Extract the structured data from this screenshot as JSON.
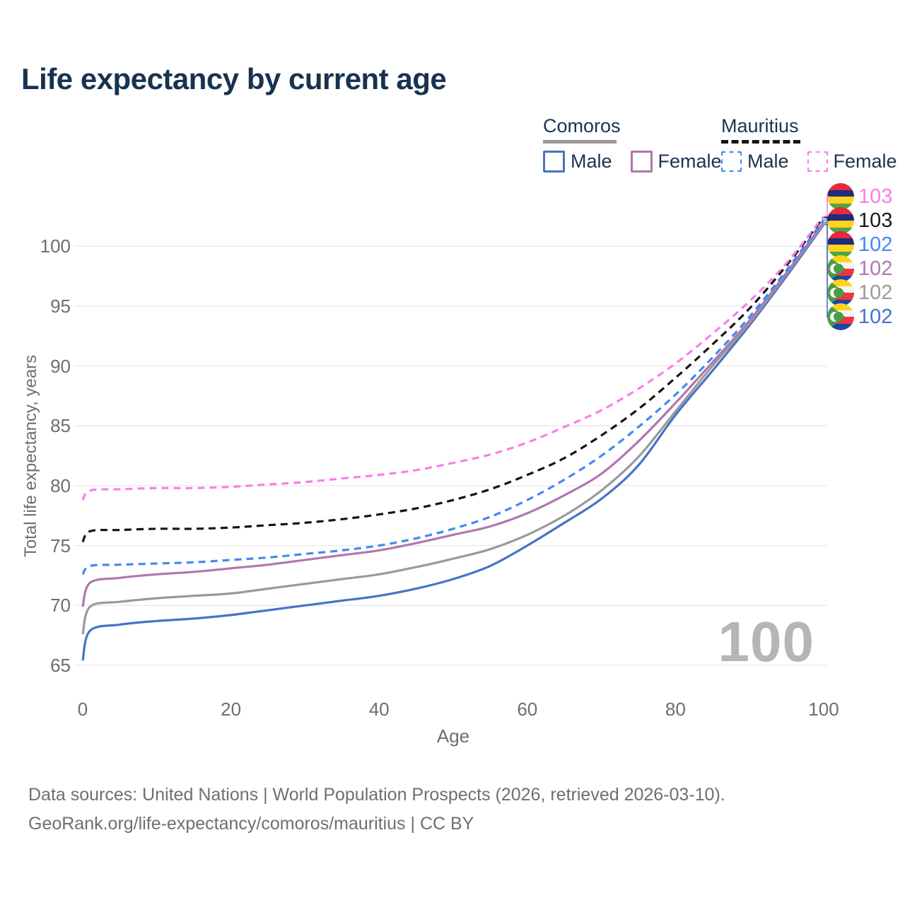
{
  "title": "Life expectancy by current age",
  "watermark": "100",
  "legend": {
    "groups": [
      {
        "name": "Comoros",
        "line_color": "#9a9a9a",
        "dashed": false,
        "items": [
          {
            "label": "Male",
            "color": "#4673c5"
          },
          {
            "label": "Female",
            "color": "#b176af"
          }
        ]
      },
      {
        "name": "Mauritius",
        "line_color": "#141414",
        "dashed": true,
        "items": [
          {
            "label": "Male",
            "color": "#4189f2"
          },
          {
            "label": "Female",
            "color": "#fc7de8"
          }
        ]
      }
    ]
  },
  "end_labels": [
    {
      "value": "103",
      "color": "#fc7de8",
      "flag": "mauritius"
    },
    {
      "value": "103",
      "color": "#1a1a1a",
      "flag": "mauritius"
    },
    {
      "value": "102",
      "color": "#4189f2",
      "flag": "mauritius"
    },
    {
      "value": "102",
      "color": "#b176af",
      "flag": "comoros"
    },
    {
      "value": "102",
      "color": "#9a9a9a",
      "flag": "comoros"
    },
    {
      "value": "102",
      "color": "#4673c5",
      "flag": "comoros"
    }
  ],
  "footer": {
    "line1": "Data sources: United Nations | World Population Prospects (2026, retrieved 2026-03-10).",
    "line2": "GeoRank.org/life-expectancy/comoros/mauritius | CC BY"
  },
  "chart_data": {
    "type": "line",
    "title": "Life expectancy by current age",
    "xlabel": "Age",
    "ylabel": "Total life expectancy, years",
    "xlim": [
      0,
      100
    ],
    "ylim": [
      63.5,
      104
    ],
    "xticks": [
      0,
      20,
      40,
      60,
      80,
      100
    ],
    "yticks": [
      65,
      70,
      75,
      80,
      85,
      90,
      95,
      100
    ],
    "grid": "horizontal",
    "legend_position": "top-right",
    "x": [
      0,
      1,
      5,
      10,
      15,
      20,
      25,
      30,
      35,
      40,
      45,
      50,
      55,
      60,
      65,
      70,
      75,
      80,
      85,
      90,
      95,
      100
    ],
    "series": [
      {
        "name": "Mauritius Female",
        "country": "Mauritius",
        "sex": "Female",
        "color": "#fc7de8",
        "dashed": true,
        "values": [
          78.8,
          79.6,
          79.7,
          79.8,
          79.8,
          79.9,
          80.1,
          80.3,
          80.6,
          80.9,
          81.3,
          81.9,
          82.6,
          83.6,
          84.9,
          86.3,
          88.1,
          90.2,
          92.7,
          95.4,
          98.6,
          102.5
        ]
      },
      {
        "name": "Mauritius Both sexes",
        "country": "Mauritius",
        "sex": "Both",
        "color": "#141414",
        "dashed": true,
        "values": [
          75.3,
          76.2,
          76.3,
          76.4,
          76.4,
          76.5,
          76.7,
          76.9,
          77.2,
          77.6,
          78.1,
          78.8,
          79.7,
          80.9,
          82.3,
          84.2,
          86.4,
          89.0,
          91.8,
          94.8,
          98.4,
          102.4
        ]
      },
      {
        "name": "Mauritius Male",
        "country": "Mauritius",
        "sex": "Male",
        "color": "#4189f2",
        "dashed": true,
        "values": [
          72.6,
          73.3,
          73.4,
          73.5,
          73.6,
          73.8,
          74.0,
          74.3,
          74.6,
          75.0,
          75.6,
          76.4,
          77.4,
          78.8,
          80.5,
          82.5,
          84.9,
          87.6,
          90.7,
          94.1,
          98.0,
          102.2
        ]
      },
      {
        "name": "Comoros Female",
        "country": "Comoros",
        "sex": "Female",
        "color": "#b176af",
        "dashed": false,
        "values": [
          69.9,
          71.9,
          72.3,
          72.6,
          72.8,
          73.1,
          73.4,
          73.8,
          74.2,
          74.6,
          75.2,
          75.9,
          76.6,
          77.7,
          79.2,
          81.0,
          83.7,
          86.9,
          90.3,
          93.8,
          97.8,
          102.0
        ]
      },
      {
        "name": "Comoros Both sexes",
        "country": "Comoros",
        "sex": "Both",
        "color": "#9a9a9a",
        "dashed": false,
        "values": [
          67.6,
          69.9,
          70.3,
          70.6,
          70.8,
          71.0,
          71.4,
          71.8,
          72.2,
          72.6,
          73.2,
          73.9,
          74.7,
          75.9,
          77.5,
          79.6,
          82.4,
          86.2,
          90.0,
          93.6,
          97.7,
          101.9
        ]
      },
      {
        "name": "Comoros Male",
        "country": "Comoros",
        "sex": "Male",
        "color": "#4673c5",
        "dashed": false,
        "values": [
          65.4,
          67.9,
          68.4,
          68.7,
          68.9,
          69.2,
          69.6,
          70.0,
          70.4,
          70.8,
          71.4,
          72.2,
          73.3,
          75.0,
          76.9,
          78.9,
          81.7,
          85.9,
          89.6,
          93.4,
          97.5,
          101.8
        ]
      }
    ]
  }
}
